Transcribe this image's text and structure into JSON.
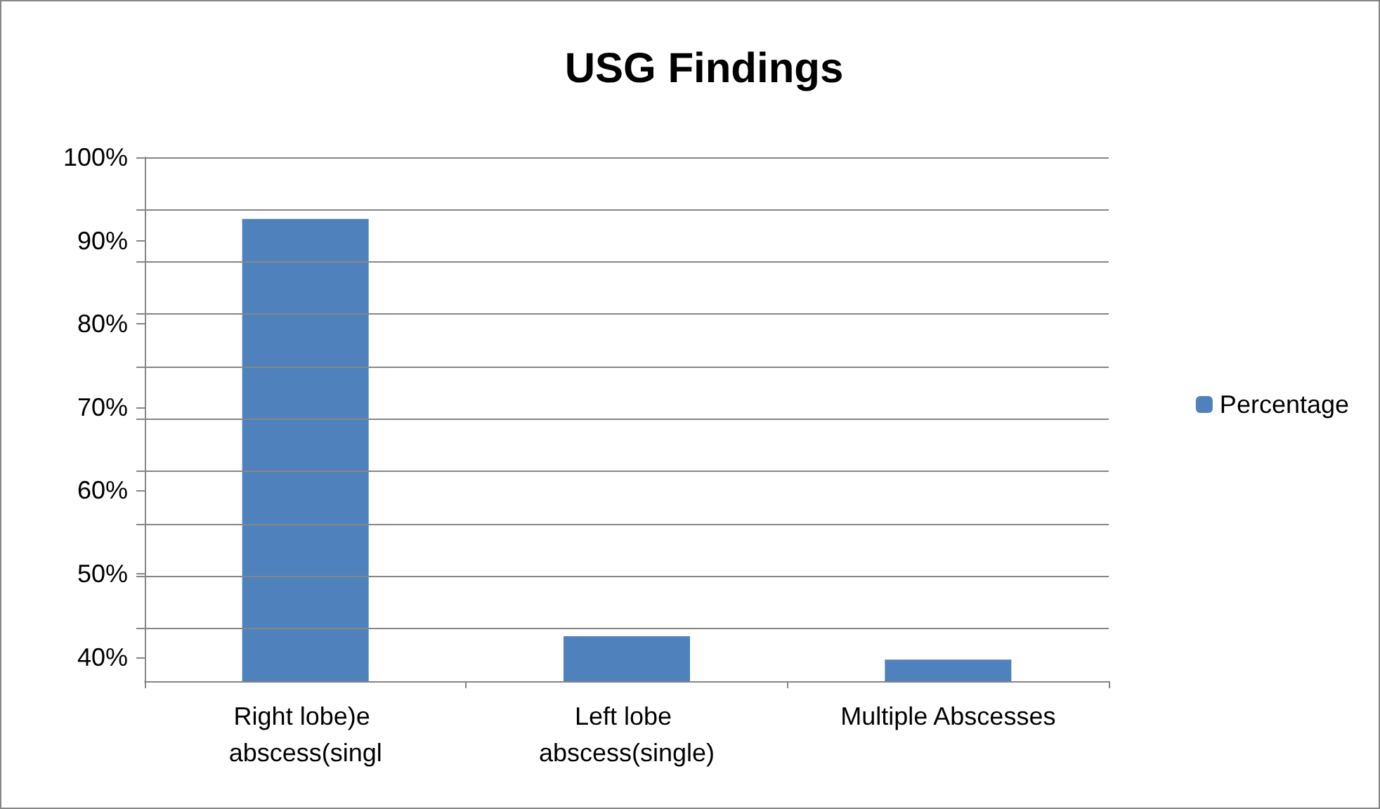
{
  "chart_data": {
    "type": "bar",
    "title": "USG Findings",
    "categories": [
      "Right lobe)e abscess(singl",
      "Left lobe abscess(single)",
      "Multiple Abscesses"
    ],
    "series": [
      {
        "name": "Percentage",
        "color": "#4f81bd",
        "values": [
          92.6,
          42.5,
          39.7
        ]
      }
    ],
    "ylim": [
      37.1,
      100
    ],
    "yticks": [
      {
        "value": 40,
        "label": "40%"
      },
      {
        "value": 50,
        "label": "50%"
      },
      {
        "value": 60,
        "label": "60%"
      },
      {
        "value": 70,
        "label": "70%"
      },
      {
        "value": 80,
        "label": "80%"
      },
      {
        "value": 90,
        "label": "90%"
      },
      {
        "value": 100,
        "label": "100%"
      },
      {
        "value": 43.4,
        "label": null
      },
      {
        "value": 49.7,
        "label": null
      },
      {
        "value": 56.0,
        "label": null
      },
      {
        "value": 62.3,
        "label": null
      },
      {
        "value": 68.6,
        "label": null
      },
      {
        "value": 74.9,
        "label": null
      },
      {
        "value": 81.2,
        "label": null
      },
      {
        "value": 87.5,
        "label": null
      },
      {
        "value": 93.7,
        "label": null
      }
    ],
    "grid": "y",
    "legend": "right"
  }
}
